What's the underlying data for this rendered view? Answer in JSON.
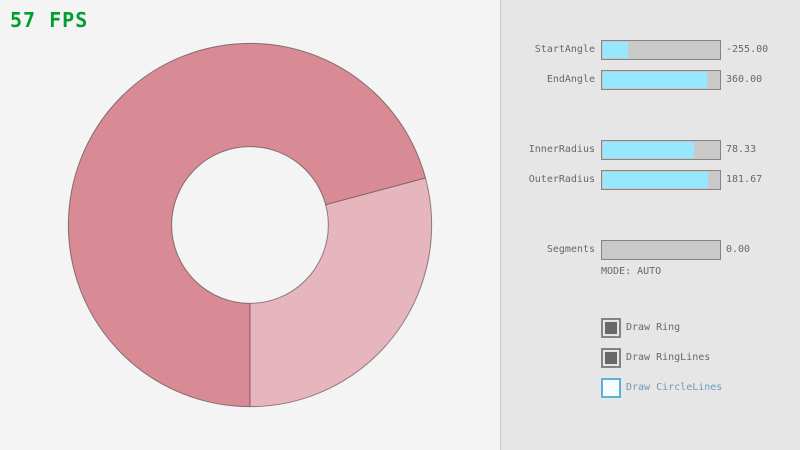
{
  "fps_label": "57 FPS",
  "panel": {
    "sliders": [
      {
        "label": "StartAngle",
        "value": "-255.00",
        "fill_pct": 21.7
      },
      {
        "label": "EndAngle",
        "value": "360.00",
        "fill_pct": 90.0
      },
      {
        "label": "InnerRadius",
        "value": "78.33",
        "fill_pct": 78.3
      },
      {
        "label": "OuterRadius",
        "value": "181.67",
        "fill_pct": 90.8
      },
      {
        "label": "Segments",
        "value": "0.00",
        "fill_pct": 0
      }
    ],
    "mode_label": "MODE: AUTO",
    "checkboxes": [
      {
        "label": "Draw Ring",
        "checked": true,
        "focused": false
      },
      {
        "label": "Draw RingLines",
        "checked": true,
        "focused": false
      },
      {
        "label": "Draw CircleLines",
        "checked": false,
        "focused": true
      }
    ]
  },
  "ring": {
    "start_angle": -255,
    "end_angle": 360,
    "inner_radius": 78.33,
    "outer_radius": 181.67,
    "segments": 0,
    "overlap_color": "#d98b95",
    "single_color": "#e6b5bd",
    "outline_color": "rgba(0,0,0,0.42)"
  },
  "colors": {
    "fps_green": "#009e2f",
    "slider_fill": "#97e8ff",
    "panel_bg": "#e6e6e6",
    "canvas_bg": "#f4f4f4",
    "text": "#686868",
    "focused_blue_border": "#5bb2d9",
    "focused_blue_text": "#6c9bbc",
    "control_border": "#838383",
    "control_bg": "#c9c9c9"
  }
}
